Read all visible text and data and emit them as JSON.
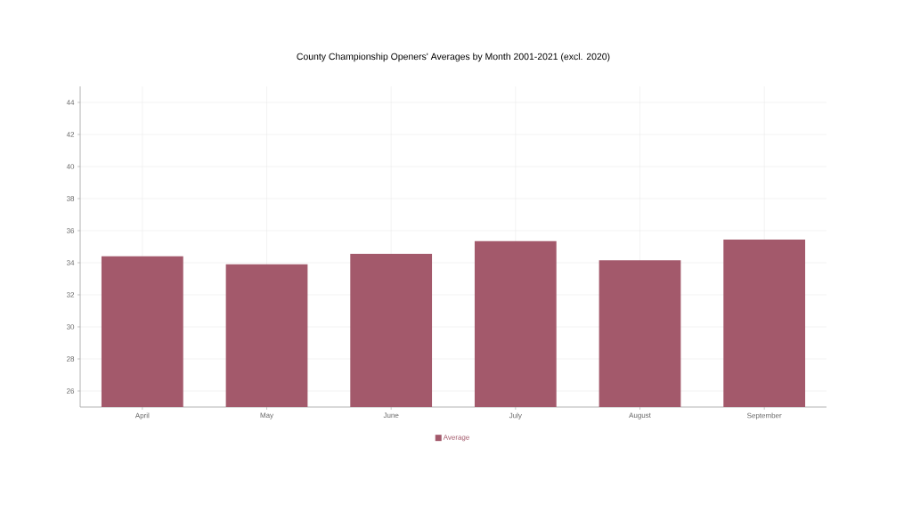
{
  "chart_data": {
    "type": "bar",
    "title": "County Championship Openers' Averages by Month 2001-2021 (excl. 2020)",
    "categories": [
      "April",
      "May",
      "June",
      "July",
      "August",
      "September"
    ],
    "series": [
      {
        "name": "Average",
        "color": "#a3596b",
        "values": [
          34.4,
          33.9,
          34.55,
          35.35,
          34.15,
          35.45
        ]
      }
    ],
    "ylim": [
      25,
      45
    ],
    "yticks": [
      26,
      28,
      30,
      32,
      34,
      36,
      38,
      40,
      42,
      44
    ],
    "grid": true,
    "legend": "bottom"
  }
}
